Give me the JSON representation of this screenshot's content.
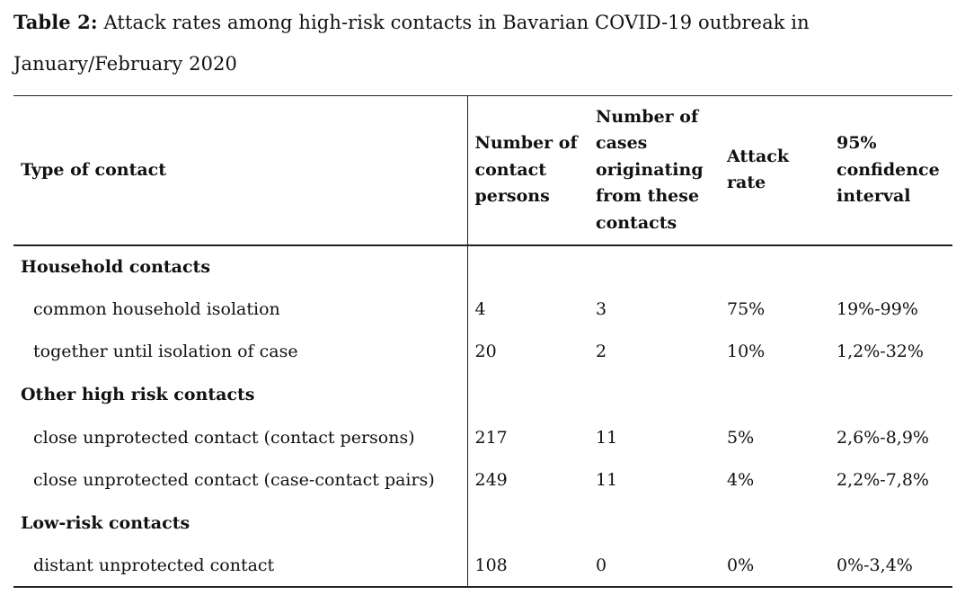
{
  "caption": {
    "label": "Table 2:",
    "text": " Attack rates among high-risk contacts in Bavarian COVID-19 outbreak in January/February 2020"
  },
  "table": {
    "headers": {
      "type": "Type of contact",
      "persons": "Number of contact persons",
      "cases": "Number of cases originating from these contacts",
      "rate": "Attack rate",
      "ci": "95% confidence interval"
    },
    "rows": [
      {
        "label": "Household contacts",
        "persons": "",
        "cases": "",
        "rate": "",
        "ci": ""
      },
      {
        "label": "common household isolation",
        "persons": "4",
        "cases": "3",
        "rate": "75%",
        "ci": "19%-99%"
      },
      {
        "label": "together until isolation of case",
        "persons": "20",
        "cases": "2",
        "rate": "10%",
        "ci": "1,2%-32%"
      },
      {
        "label": "Other high risk contacts",
        "persons": "",
        "cases": "",
        "rate": "",
        "ci": ""
      },
      {
        "label": "close unprotected contact (contact persons)",
        "persons": "217",
        "cases": "11",
        "rate": "5%",
        "ci": "2,6%-8,9%"
      },
      {
        "label": "close unprotected contact (case-contact pairs)",
        "persons": "249",
        "cases": "11",
        "rate": "4%",
        "ci": "2,2%-7,8%"
      },
      {
        "label": "Low-risk contacts",
        "persons": "",
        "cases": "",
        "rate": "",
        "ci": ""
      },
      {
        "label": "distant unprotected contact",
        "persons": "108",
        "cases": "0",
        "rate": "0%",
        "ci": "0%-3,4%"
      }
    ]
  }
}
